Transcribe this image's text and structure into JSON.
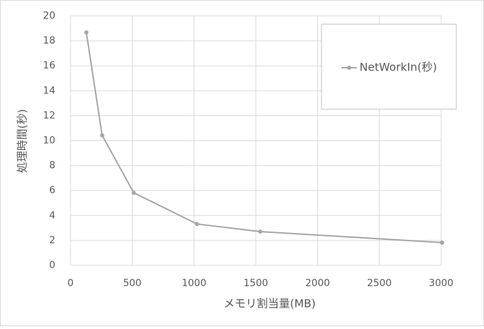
{
  "chart_data": {
    "type": "line",
    "x_label": "メモリ割当量(MB)",
    "y_label": "処理時間(秒)",
    "x": [
      128,
      256,
      512,
      1024,
      1536,
      3008
    ],
    "series": [
      {
        "name": "NetWorkIn(秒)",
        "color": "#a5a5a5",
        "values": [
          18.67,
          10.42,
          5.82,
          3.32,
          2.71,
          1.83
        ]
      }
    ],
    "xlim": [
      0,
      3000
    ],
    "xticks": [
      0,
      500,
      1000,
      1500,
      2000,
      2500,
      3000
    ],
    "ylim": [
      0,
      20
    ],
    "yticks": [
      0,
      2,
      4,
      6,
      8,
      10,
      12,
      14,
      16,
      18,
      20
    ],
    "grid": true,
    "legend": "upper right"
  }
}
